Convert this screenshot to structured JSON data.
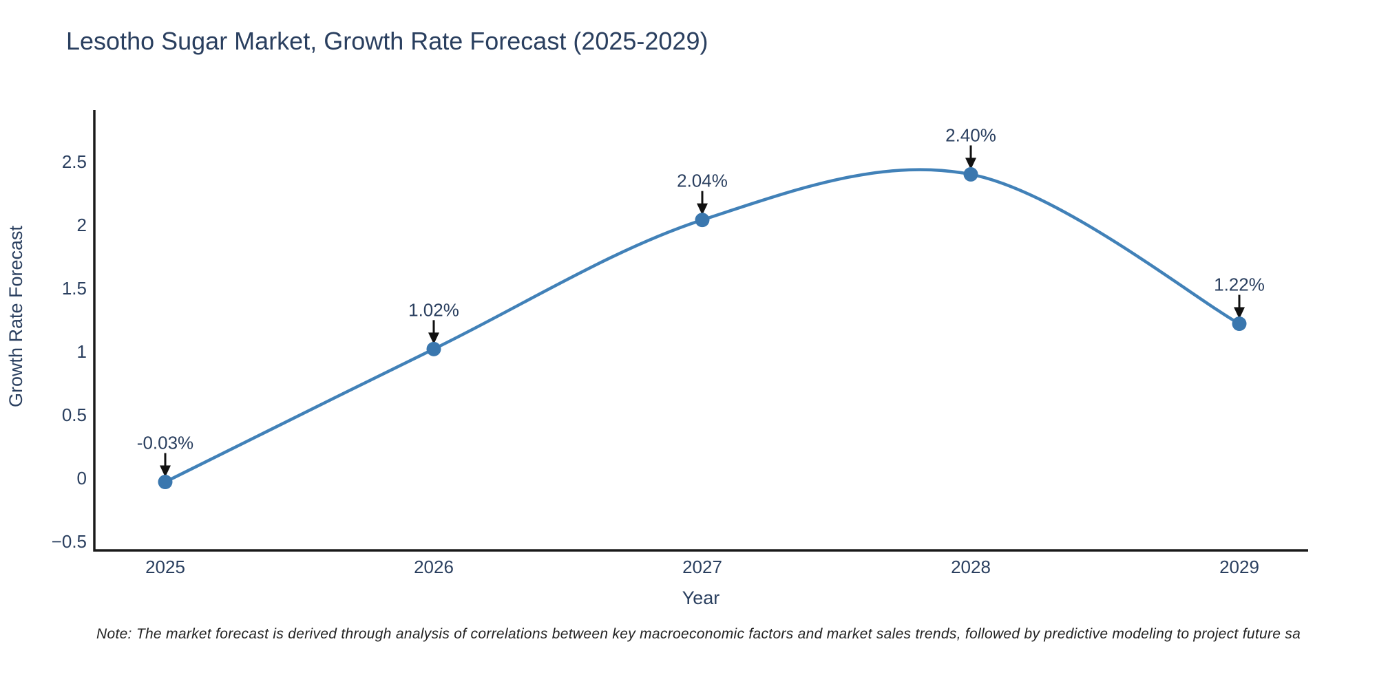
{
  "chart_data": {
    "type": "line",
    "title": "Lesotho Sugar Market, Growth Rate Forecast (2025-2029)",
    "xlabel": "Year",
    "ylabel": "Growth Rate Forecast",
    "categories": [
      "2025",
      "2026",
      "2027",
      "2028",
      "2029"
    ],
    "values": [
      -0.03,
      1.02,
      2.04,
      2.4,
      1.22
    ],
    "point_labels": [
      "-0.03%",
      "1.02%",
      "2.04%",
      "2.40%",
      "1.22%"
    ],
    "ytick_values": [
      2.5,
      2,
      1.5,
      1,
      0.5,
      0,
      -0.5
    ],
    "ytick_labels": [
      "2.5",
      "2",
      "1.5",
      "1",
      "0.5",
      "0",
      "−0.5"
    ],
    "ylim": [
      -0.57,
      2.91
    ],
    "grid": false,
    "legend_position": "none",
    "line_shape": "spline",
    "marker": "circle",
    "annotation_arrows": true,
    "colors": {
      "line": "#4181b8",
      "marker": "#3a77ae",
      "axis": "#1a1a1a",
      "text": "#2a3f5f",
      "arrow": "#111111",
      "background": "#ffffff"
    }
  },
  "note": {
    "text": "Note: The market forecast is derived through analysis of correlations between key macroeconomic factors and market sales trends, followed by predictive modeling to project future sa"
  }
}
